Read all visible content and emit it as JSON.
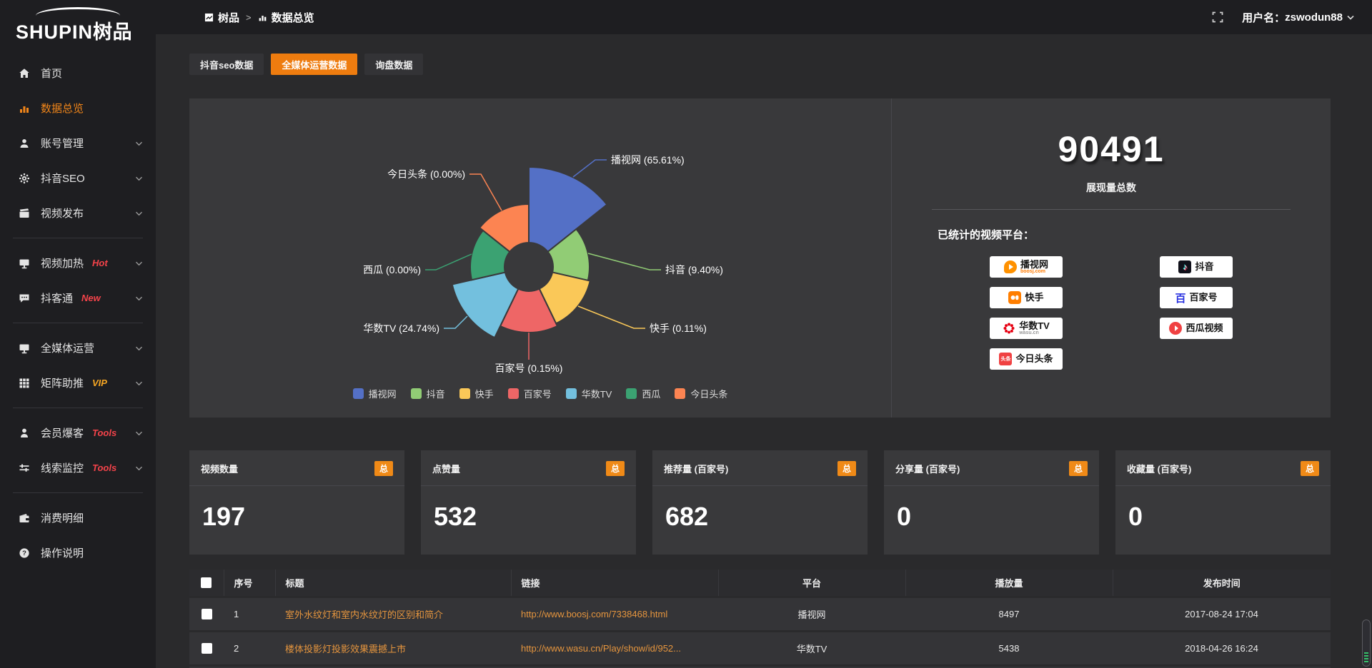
{
  "header": {
    "logo_en": "SHUPIN",
    "logo_cn": "树品",
    "breadcrumb": [
      "树品",
      "数据总览"
    ],
    "user_label": "用户名：",
    "username": "zswodun88"
  },
  "sidebar": {
    "items": [
      {
        "label": "首页",
        "icon": "home",
        "active": false,
        "chevron": false,
        "badge": "",
        "badge_color": ""
      },
      {
        "label": "数据总览",
        "icon": "chart",
        "active": true,
        "chevron": false,
        "badge": "",
        "badge_color": ""
      },
      {
        "label": "账号管理",
        "icon": "user",
        "active": false,
        "chevron": true,
        "badge": "",
        "badge_color": ""
      },
      {
        "label": "抖音SEO",
        "icon": "gear",
        "active": false,
        "chevron": true,
        "badge": "",
        "badge_color": ""
      },
      {
        "label": "视频发布",
        "icon": "video",
        "active": false,
        "chevron": true,
        "badge": "",
        "badge_color": "",
        "divider_after": true
      },
      {
        "label": "视频加热",
        "icon": "monitor",
        "active": false,
        "chevron": true,
        "badge": "Hot",
        "badge_color": "red"
      },
      {
        "label": "抖客通",
        "icon": "chat",
        "active": false,
        "chevron": true,
        "badge": "New",
        "badge_color": "red",
        "divider_after": true
      },
      {
        "label": "全媒体运营",
        "icon": "monitor",
        "active": false,
        "chevron": true,
        "badge": "",
        "badge_color": ""
      },
      {
        "label": "矩阵助推",
        "icon": "grid",
        "active": false,
        "chevron": true,
        "badge": "VIP",
        "badge_color": "orange",
        "divider_after": true
      },
      {
        "label": "会员爆客",
        "icon": "person",
        "active": false,
        "chevron": true,
        "badge": "Tools",
        "badge_color": "red"
      },
      {
        "label": "线索监控",
        "icon": "sliders",
        "active": false,
        "chevron": true,
        "badge": "Tools",
        "badge_color": "red",
        "divider_after": true
      },
      {
        "label": "消费明细",
        "icon": "wallet",
        "active": false,
        "chevron": false,
        "badge": "",
        "badge_color": ""
      },
      {
        "label": "操作说明",
        "icon": "help",
        "active": false,
        "chevron": false,
        "badge": "",
        "badge_color": ""
      }
    ]
  },
  "tabs": [
    {
      "label": "抖音seo数据",
      "active": false
    },
    {
      "label": "全媒体运营数据",
      "active": true
    },
    {
      "label": "询盘数据",
      "active": false
    }
  ],
  "chart_data": {
    "type": "pie",
    "variant": "nightingale-rose",
    "unit": "%",
    "legend_position": "bottom",
    "items": [
      {
        "name": "播视网",
        "value": 65.61,
        "pct": "65.61",
        "color": "#5470c6",
        "r": 140
      },
      {
        "name": "抖音",
        "value": 9.4,
        "pct": "9.40",
        "color": "#91cc75",
        "r": 85
      },
      {
        "name": "快手",
        "value": 0.11,
        "pct": "0.11",
        "color": "#fac858",
        "r": 88
      },
      {
        "name": "百家号",
        "value": 0.15,
        "pct": "0.15",
        "color": "#ee6666",
        "r": 92
      },
      {
        "name": "华数TV",
        "value": 24.74,
        "pct": "24.74",
        "color": "#73c0de",
        "r": 110
      },
      {
        "name": "西瓜",
        "value": 0.0,
        "pct": "0.00",
        "color": "#3ba272",
        "r": 82
      },
      {
        "name": "今日头条",
        "value": 0.0,
        "pct": "0.00",
        "color": "#fc8452",
        "r": 88
      }
    ]
  },
  "summary": {
    "total": "90491",
    "total_label": "展现量总数",
    "platforms_title": "已统计的视频平台：",
    "platform_columns": [
      [
        {
          "name": "播视网",
          "sub": "boosj.com",
          "logo": "boosj",
          "logo_text": ""
        },
        {
          "name": "快手",
          "sub": "",
          "logo": "kuaishou",
          "logo_text": ""
        },
        {
          "name": "华数TV",
          "sub": "wasu.cn",
          "logo": "wasu",
          "logo_text": ""
        },
        {
          "name": "今日头条",
          "sub": "",
          "logo": "toutiao",
          "logo_text": "头条"
        }
      ],
      [
        {
          "name": "抖音",
          "sub": "",
          "logo": "douyin",
          "logo_text": ""
        },
        {
          "name": "百家号",
          "sub": "",
          "logo": "baijia",
          "logo_text": "百"
        },
        {
          "name": "西瓜视频",
          "sub": "",
          "logo": "xigua",
          "logo_text": ""
        }
      ]
    ]
  },
  "stat_cards": [
    {
      "label": "视频数量",
      "badge": "总",
      "value": "197"
    },
    {
      "label": "点赞量",
      "badge": "总",
      "value": "532"
    },
    {
      "label": "推荐量 (百家号)",
      "badge": "总",
      "value": "682"
    },
    {
      "label": "分享量 (百家号)",
      "badge": "总",
      "value": "0"
    },
    {
      "label": "收藏量 (百家号)",
      "badge": "总",
      "value": "0"
    }
  ],
  "table": {
    "headers": [
      "序号",
      "标题",
      "链接",
      "平台",
      "播放量",
      "发布时间"
    ],
    "rows": [
      {
        "num": "1",
        "title": "室外水纹灯和室内水纹灯的区别和简介",
        "link": "http://www.boosj.com/7338468.html",
        "platform": "播视网",
        "plays": "8497",
        "time": "2017-08-24 17:04"
      },
      {
        "num": "2",
        "title": "楼体投影灯投影效果震撼上市",
        "link": "http://www.wasu.cn/Play/show/id/952...",
        "platform": "华数TV",
        "plays": "5438",
        "time": "2018-04-26 16:24"
      },
      {
        "num": "",
        "title": "",
        "link": "",
        "platform": "",
        "plays": "",
        "time": ""
      }
    ]
  }
}
